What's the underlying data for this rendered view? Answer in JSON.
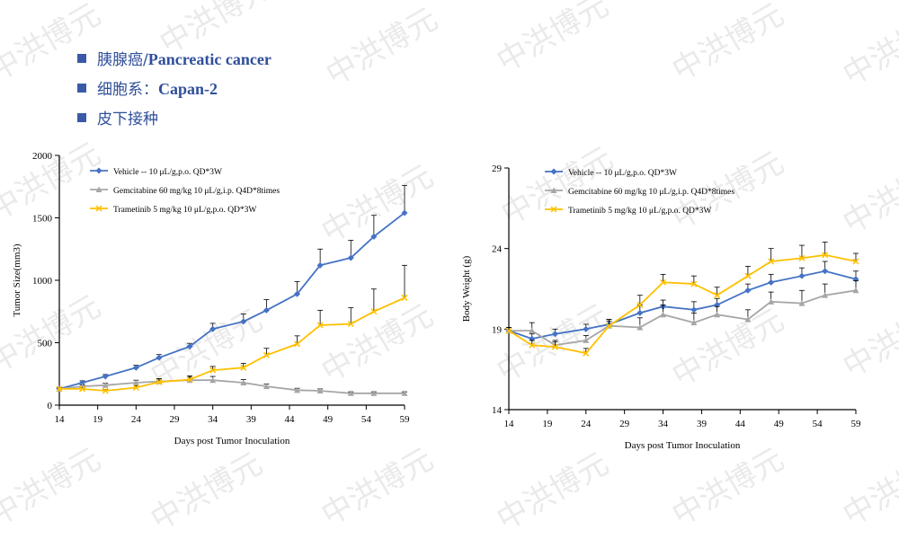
{
  "watermark": "中洪博元",
  "bullets": [
    {
      "zh": "胰腺癌/",
      "en": "Pancreatic cancer"
    },
    {
      "zh": "细胞系：",
      "en": "Capan-2"
    },
    {
      "zh": "皮下接种",
      "en": ""
    }
  ],
  "colors": {
    "vehicle": "#4472c4",
    "gemcitabine": "#a6a6a6",
    "trametinib": "#ffc000",
    "bullet": "#3a5aa8"
  },
  "chart_data": [
    {
      "type": "line",
      "id": "tumor",
      "xlabel": "Days post Tumor Inoculation",
      "ylabel": "Tumor Size(mm3)",
      "xlim": [
        14,
        59
      ],
      "ylim": [
        0,
        2000
      ],
      "xticks": [
        14,
        19,
        24,
        29,
        34,
        39,
        44,
        49,
        54,
        59
      ],
      "yticks": [
        0,
        500,
        1000,
        1500,
        2000
      ],
      "legend": "top-left",
      "x": [
        14,
        17,
        20,
        24,
        27,
        31,
        34,
        38,
        41,
        45,
        48,
        52,
        55,
        59
      ],
      "series": [
        {
          "name": "Vehicle -- 10 μL/g,p.o. QD*3W",
          "key": "vehicle",
          "marker": "diamond",
          "values": [
            130,
            180,
            230,
            300,
            380,
            470,
            610,
            670,
            760,
            890,
            1120,
            1180,
            1350,
            1540
          ],
          "errors": [
            10,
            15,
            15,
            20,
            25,
            25,
            45,
            60,
            85,
            100,
            130,
            140,
            170,
            220
          ]
        },
        {
          "name": "Gemcitabine 60 mg/kg 10 μL/g,i.p. Q4D*8times",
          "key": "gemcitabine",
          "marker": "triangle",
          "values": [
            130,
            150,
            160,
            180,
            190,
            200,
            200,
            180,
            150,
            120,
            115,
            95,
            95,
            95
          ],
          "errors": [
            8,
            12,
            15,
            20,
            22,
            25,
            30,
            25,
            20,
            15,
            15,
            12,
            12,
            12
          ]
        },
        {
          "name": "Trametinib 5 mg/kg 10 μL/g,p.o. QD*3W",
          "key": "trametinib",
          "marker": "x",
          "values": [
            130,
            130,
            115,
            140,
            185,
            205,
            280,
            300,
            400,
            490,
            640,
            650,
            750,
            860
          ],
          "errors": [
            8,
            10,
            10,
            15,
            25,
            30,
            30,
            35,
            55,
            65,
            120,
            130,
            180,
            260
          ]
        }
      ]
    },
    {
      "type": "line",
      "id": "weight",
      "xlabel": "Days post Tumor Inoculation",
      "ylabel": "Body Weight (g)",
      "xlim": [
        14,
        59
      ],
      "ylim": [
        14,
        29
      ],
      "xticks": [
        14,
        19,
        24,
        29,
        34,
        39,
        44,
        49,
        54,
        59
      ],
      "yticks": [
        14,
        19,
        24,
        29
      ],
      "legend": "top-left",
      "x": [
        14,
        17,
        20,
        24,
        27,
        31,
        34,
        38,
        41,
        45,
        48,
        52,
        55,
        59
      ],
      "series": [
        {
          "name": "Vehicle -- 10 μL/g,p.o. QD*3W",
          "key": "vehicle",
          "marker": "diamond",
          "values": [
            18.9,
            18.4,
            18.7,
            19.0,
            19.3,
            20.0,
            20.4,
            20.2,
            20.5,
            21.4,
            21.9,
            22.3,
            22.6,
            22.1
          ],
          "errors": [
            0.2,
            0.3,
            0.3,
            0.3,
            0.3,
            0.5,
            0.4,
            0.5,
            0.4,
            0.4,
            0.5,
            0.5,
            0.6,
            0.5
          ]
        },
        {
          "name": "Gemcitabine 60 mg/kg 10 μL/g,i.p. Q4D*8times",
          "key": "gemcitabine",
          "marker": "triangle",
          "values": [
            18.9,
            18.9,
            18.0,
            18.3,
            19.2,
            19.1,
            19.9,
            19.4,
            19.9,
            19.6,
            20.7,
            20.6,
            21.1,
            21.4
          ],
          "errors": [
            0.2,
            0.5,
            0.3,
            0.3,
            0.3,
            0.6,
            0.6,
            0.6,
            0.5,
            0.6,
            0.6,
            0.8,
            0.7,
            0.6
          ]
        },
        {
          "name": "Trametinib 5 mg/kg 10 μL/g,p.o. QD*3W",
          "key": "trametinib",
          "marker": "x",
          "values": [
            18.9,
            18.0,
            17.9,
            17.5,
            19.2,
            20.5,
            21.9,
            21.8,
            21.1,
            22.3,
            23.2,
            23.4,
            23.6,
            23.2
          ],
          "errors": [
            0.2,
            0.3,
            0.3,
            0.3,
            0.4,
            0.6,
            0.5,
            0.5,
            0.5,
            0.6,
            0.8,
            0.8,
            0.8,
            0.5
          ]
        }
      ]
    }
  ]
}
